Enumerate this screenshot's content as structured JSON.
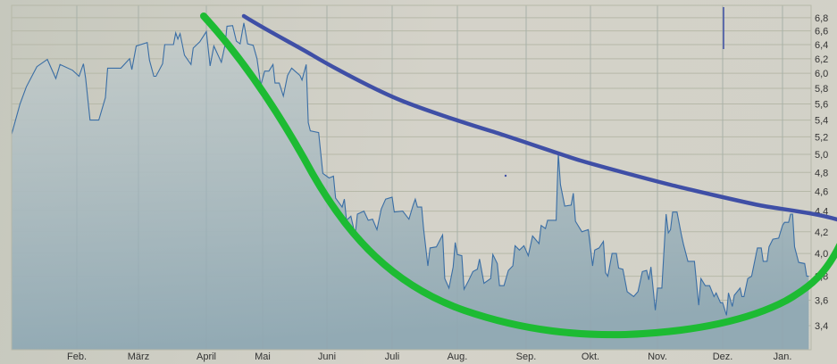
{
  "chart_data": {
    "type": "area",
    "title": "",
    "xlabel": "",
    "ylabel": "",
    "y_scale": "log",
    "ylim": [
      3.2,
      6.95
    ],
    "grid": true,
    "legend": "none",
    "y_axis_position": "right",
    "x_tick_labels": [
      "Feb.",
      "März",
      "April",
      "Mai",
      "Juni",
      "Juli",
      "Aug.",
      "Sep.",
      "Okt.",
      "Nov.",
      "Dez.",
      "Jan."
    ],
    "y_ticks": [
      6.8,
      6.6,
      6.4,
      6.2,
      6.0,
      5.8,
      5.6,
      5.4,
      5.2,
      5.0,
      4.8,
      4.6,
      4.4,
      4.2,
      4.0,
      3.8,
      3.6,
      3.4
    ],
    "y_tick_labels": [
      "6,8",
      "6,6",
      "6,4",
      "6,2",
      "6,0",
      "5,8",
      "5,6",
      "5,4",
      "5,2",
      "5,0",
      "4,8",
      "4,6",
      "4,4",
      "4,2",
      "4,0",
      "3,8",
      "3,6",
      "3,4"
    ],
    "colors": {
      "line": "#3a6ea5",
      "fill_top": "#c5cdcc",
      "fill_bottom": "#92aab4",
      "grid": "#b6b8a8",
      "trend_resistance": "#3f4fa6",
      "trend_bowl": "#1dbb33"
    },
    "series": [
      {
        "values": [
          [
            "01.01",
            5.23
          ],
          [
            "05.01",
            5.6
          ],
          [
            "08.01",
            5.82
          ],
          [
            "13.01",
            6.09
          ],
          [
            "18.01",
            6.19
          ],
          [
            "22.01",
            5.93
          ],
          [
            "24.01",
            6.12
          ],
          [
            "30.01",
            6.04
          ],
          [
            "02.02",
            5.96
          ],
          [
            "04.02",
            6.13
          ],
          [
            "05.02",
            5.93
          ],
          [
            "07.02",
            5.4
          ],
          [
            "11.02",
            5.4
          ],
          [
            "14.02",
            5.68
          ],
          [
            "15.02",
            6.07
          ],
          [
            "21.02",
            6.07
          ],
          [
            "25.02",
            6.2
          ],
          [
            "26.02",
            6.05
          ],
          [
            "28.02",
            6.38
          ],
          [
            "05.03",
            6.43
          ],
          [
            "06.03",
            6.18
          ],
          [
            "08.03",
            5.96
          ],
          [
            "09.03",
            5.96
          ],
          [
            "12.03",
            6.13
          ],
          [
            "13.03",
            6.4
          ],
          [
            "17.03",
            6.4
          ],
          [
            "18.03",
            6.57
          ],
          [
            "19.03",
            6.48
          ],
          [
            "20.03",
            6.56
          ],
          [
            "22.03",
            6.25
          ],
          [
            "25.03",
            6.12
          ],
          [
            "26.03",
            6.35
          ],
          [
            "29.03",
            6.44
          ],
          [
            "01.04",
            6.59
          ],
          [
            "03.04",
            6.1
          ],
          [
            "05.04",
            6.38
          ],
          [
            "09.04",
            6.15
          ],
          [
            "11.04",
            6.4
          ],
          [
            "12.04",
            6.67
          ],
          [
            "15.04",
            6.68
          ],
          [
            "17.04",
            6.45
          ],
          [
            "19.04",
            6.41
          ],
          [
            "21.04",
            6.72
          ],
          [
            "23.04",
            6.41
          ],
          [
            "26.04",
            6.39
          ],
          [
            "28.04",
            6.2
          ],
          [
            "30.04",
            5.84
          ],
          [
            "02.05",
            6.03
          ],
          [
            "04.05",
            6.03
          ],
          [
            "06.05",
            6.12
          ],
          [
            "07.05",
            5.87
          ],
          [
            "09.05",
            5.87
          ],
          [
            "11.05",
            5.7
          ],
          [
            "13.05",
            5.97
          ],
          [
            "15.05",
            6.07
          ],
          [
            "19.05",
            5.97
          ],
          [
            "20.05",
            5.91
          ],
          [
            "22.05",
            6.12
          ],
          [
            "23.05",
            5.37
          ],
          [
            "24.05",
            5.27
          ],
          [
            "28.05",
            5.25
          ],
          [
            "30.05",
            4.79
          ],
          [
            "02.06",
            4.74
          ],
          [
            "04.06",
            4.76
          ],
          [
            "05.06",
            4.53
          ],
          [
            "08.06",
            4.44
          ],
          [
            "09.06",
            4.52
          ],
          [
            "10.06",
            4.31
          ],
          [
            "12.06",
            4.35
          ],
          [
            "14.06",
            4.17
          ],
          [
            "15.06",
            4.37
          ],
          [
            "18.06",
            4.4
          ],
          [
            "20.06",
            4.31
          ],
          [
            "22.06",
            4.32
          ],
          [
            "24.06",
            4.22
          ],
          [
            "26.06",
            4.42
          ],
          [
            "28.06",
            4.52
          ],
          [
            "01.07",
            4.54
          ],
          [
            "02.07",
            4.39
          ],
          [
            "06.07",
            4.4
          ],
          [
            "09.07",
            4.32
          ],
          [
            "11.07",
            4.46
          ],
          [
            "12.07",
            4.52
          ],
          [
            "13.07",
            4.44
          ],
          [
            "15.07",
            4.44
          ],
          [
            "16.07",
            4.22
          ],
          [
            "18.07",
            3.89
          ],
          [
            "19.07",
            4.05
          ],
          [
            "22.07",
            4.06
          ],
          [
            "25.07",
            4.17
          ],
          [
            "26.07",
            3.78
          ],
          [
            "28.07",
            3.7
          ],
          [
            "30.07",
            3.88
          ],
          [
            "31.07",
            4.1
          ],
          [
            "01.08",
            3.99
          ],
          [
            "03.08",
            3.98
          ],
          [
            "04.08",
            3.69
          ],
          [
            "06.08",
            3.76
          ],
          [
            "08.08",
            3.84
          ],
          [
            "10.08",
            3.86
          ],
          [
            "11.08",
            3.95
          ],
          [
            "13.08",
            3.74
          ],
          [
            "16.08",
            3.78
          ],
          [
            "17.08",
            3.99
          ],
          [
            "19.08",
            3.91
          ],
          [
            "20.08",
            3.72
          ],
          [
            "22.08",
            3.72
          ],
          [
            "24.08",
            3.85
          ],
          [
            "26.08",
            3.89
          ],
          [
            "27.08",
            4.07
          ],
          [
            "29.08",
            4.03
          ],
          [
            "31.08",
            4.07
          ],
          [
            "02.09",
            3.98
          ],
          [
            "04.09",
            4.16
          ],
          [
            "07.09",
            4.09
          ],
          [
            "08.09",
            4.26
          ],
          [
            "10.09",
            4.23
          ],
          [
            "11.09",
            4.31
          ],
          [
            "12.09",
            4.31
          ],
          [
            "15.09",
            4.31
          ],
          [
            "16.09",
            5.01
          ],
          [
            "17.09",
            4.67
          ],
          [
            "19.09",
            4.45
          ],
          [
            "22.09",
            4.46
          ],
          [
            "23.09",
            4.58
          ],
          [
            "24.09",
            4.3
          ],
          [
            "27.09",
            4.2
          ],
          [
            "30.09",
            4.22
          ],
          [
            "02.10",
            3.89
          ],
          [
            "03.10",
            4.03
          ],
          [
            "05.10",
            4.05
          ],
          [
            "07.10",
            4.11
          ],
          [
            "08.10",
            3.83
          ],
          [
            "09.10",
            3.8
          ],
          [
            "11.10",
            4.0
          ],
          [
            "13.10",
            4.0
          ],
          [
            "14.10",
            3.87
          ],
          [
            "16.10",
            3.86
          ],
          [
            "18.10",
            3.67
          ],
          [
            "21.10",
            3.63
          ],
          [
            "23.10",
            3.67
          ],
          [
            "25.10",
            3.84
          ],
          [
            "27.10",
            3.85
          ],
          [
            "28.10",
            3.77
          ],
          [
            "29.10",
            3.88
          ],
          [
            "31.10",
            3.52
          ],
          [
            "01.11",
            3.7
          ],
          [
            "03.11",
            3.7
          ],
          [
            "05.11",
            4.37
          ],
          [
            "06.11",
            4.19
          ],
          [
            "07.11",
            4.22
          ],
          [
            "08.11",
            4.39
          ],
          [
            "10.11",
            4.39
          ],
          [
            "12.11",
            4.17
          ],
          [
            "13.11",
            4.08
          ],
          [
            "15.11",
            3.93
          ],
          [
            "18.11",
            3.93
          ],
          [
            "20.11",
            3.56
          ],
          [
            "21.11",
            3.78
          ],
          [
            "23.11",
            3.72
          ],
          [
            "25.11",
            3.72
          ],
          [
            "27.11",
            3.63
          ],
          [
            "28.11",
            3.66
          ],
          [
            "30.11",
            3.58
          ],
          [
            "01.12",
            3.58
          ],
          [
            "03.12",
            3.48
          ],
          [
            "04.12",
            3.66
          ],
          [
            "06.12",
            3.55
          ],
          [
            "07.12",
            3.64
          ],
          [
            "10.12",
            3.7
          ],
          [
            "11.12",
            3.63
          ],
          [
            "12.12",
            3.63
          ],
          [
            "14.12",
            3.78
          ],
          [
            "16.12",
            3.8
          ],
          [
            "19.12",
            4.05
          ],
          [
            "21.12",
            4.05
          ],
          [
            "22.12",
            3.93
          ],
          [
            "24.12",
            3.93
          ],
          [
            "25.12",
            4.06
          ],
          [
            "27.12",
            4.13
          ],
          [
            "30.12",
            4.14
          ],
          [
            "01.01",
            4.26
          ],
          [
            "02.01",
            4.29
          ],
          [
            "04.01",
            4.29
          ],
          [
            "05.01",
            4.37
          ],
          [
            "06.01",
            4.37
          ],
          [
            "07.01",
            4.06
          ],
          [
            "09.01",
            3.92
          ],
          [
            "12.01",
            3.91
          ],
          [
            "13.01",
            3.8
          ],
          [
            "14.01",
            3.8
          ]
        ]
      }
    ]
  }
}
